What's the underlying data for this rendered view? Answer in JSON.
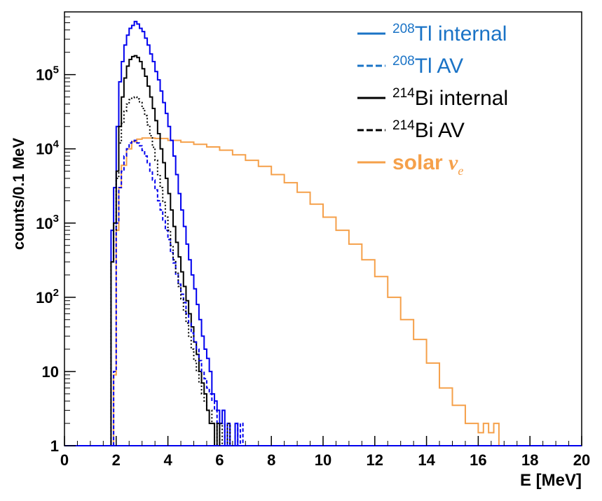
{
  "chart_data": {
    "type": "line",
    "xlabel": "E [MeV]",
    "ylabel": "counts/0.1 MeV",
    "xlim": [
      0,
      20
    ],
    "ylim": [
      1,
      700000
    ],
    "yscale": "log",
    "x_ticks": [
      "0",
      "2",
      "4",
      "6",
      "8",
      "10",
      "12",
      "14",
      "16",
      "18",
      "20"
    ],
    "y_ticks": [
      {
        "value": 1,
        "base": "1",
        "exp": ""
      },
      {
        "value": 10,
        "base": "10",
        "exp": ""
      },
      {
        "value": 100,
        "base": "10",
        "exp": "2"
      },
      {
        "value": 1000,
        "base": "10",
        "exp": "3"
      },
      {
        "value": 10000,
        "base": "10",
        "exp": "4"
      },
      {
        "value": 100000,
        "base": "10",
        "exp": "5"
      }
    ],
    "legend_position": "top-right",
    "series": [
      {
        "name": "208Tl internal",
        "legend": {
          "sup": "208",
          "text": "Tl internal",
          "italic": ""
        },
        "color": "#0000ee",
        "legend_color": "#1a73c6",
        "dash": "solid",
        "x": [
          1.8,
          1.9,
          2.0,
          2.1,
          2.2,
          2.3,
          2.4,
          2.5,
          2.6,
          2.7,
          2.8,
          2.9,
          3.0,
          3.1,
          3.2,
          3.3,
          3.4,
          3.5,
          3.6,
          3.7,
          3.8,
          3.9,
          4.0,
          4.1,
          4.2,
          4.3,
          4.4,
          4.5,
          4.6,
          4.7,
          4.8,
          4.9,
          5.0,
          5.1,
          5.2,
          5.3,
          5.4,
          5.5,
          5.6,
          5.7,
          5.8,
          5.9,
          6.0,
          6.1,
          6.2,
          6.3,
          6.4,
          6.5,
          6.6,
          6.7,
          6.8,
          6.9
        ],
        "values": [
          800,
          3000,
          20000,
          80000,
          150000,
          250000,
          340000,
          420000,
          460000,
          520000,
          480000,
          420000,
          380000,
          310000,
          250000,
          190000,
          150000,
          110000,
          85000,
          60000,
          42000,
          30000,
          20000,
          13000,
          8000,
          4500,
          2500,
          1500,
          900,
          520,
          320,
          200,
          130,
          80,
          50,
          30,
          20,
          15,
          10,
          5,
          4,
          3,
          2,
          3,
          1,
          2,
          1,
          1,
          2,
          1,
          1,
          1
        ]
      },
      {
        "name": "208Tl AV",
        "legend": {
          "sup": "208",
          "text": "Tl AV",
          "italic": ""
        },
        "color": "#0000ee",
        "legend_color": "#1a73c6",
        "dash": "dashed",
        "x": [
          1.9,
          2.0,
          2.1,
          2.2,
          2.3,
          2.4,
          2.5,
          2.6,
          2.7,
          2.8,
          2.9,
          3.0,
          3.1,
          3.2,
          3.3,
          3.4,
          3.5,
          3.6,
          3.7,
          3.8,
          3.9,
          4.0,
          4.1,
          4.2,
          4.3,
          4.4,
          4.5,
          4.6,
          4.7,
          4.8,
          4.9,
          5.0,
          5.1,
          5.2,
          5.3,
          5.4,
          5.5,
          5.6,
          5.7,
          5.8,
          5.9,
          6.0,
          6.1,
          6.2,
          6.3,
          6.4,
          6.5,
          6.6,
          6.7,
          6.8,
          6.9
        ],
        "values": [
          10,
          1000,
          3000,
          5000,
          8000,
          10000,
          12000,
          12500,
          13000,
          12000,
          11000,
          9500,
          8000,
          6500,
          5000,
          3800,
          2800,
          2000,
          1500,
          1100,
          800,
          600,
          400,
          290,
          200,
          150,
          110,
          85,
          60,
          45,
          33,
          25,
          20,
          14,
          10,
          8,
          6,
          5,
          4,
          3,
          2,
          2,
          2,
          1,
          2,
          1,
          1,
          2,
          1,
          2,
          1
        ]
      },
      {
        "name": "214Bi internal",
        "legend": {
          "sup": "214",
          "text": "Bi internal",
          "italic": ""
        },
        "color": "#000000",
        "legend_color": "#000000",
        "dash": "solid",
        "x": [
          1.8,
          1.9,
          2.0,
          2.1,
          2.2,
          2.3,
          2.4,
          2.5,
          2.6,
          2.7,
          2.8,
          2.9,
          3.0,
          3.1,
          3.2,
          3.3,
          3.4,
          3.5,
          3.6,
          3.7,
          3.8,
          3.9,
          4.0,
          4.1,
          4.2,
          4.3,
          4.4,
          4.5,
          4.6,
          4.7,
          4.8,
          4.9,
          5.0,
          5.1,
          5.2,
          5.3,
          5.4,
          5.5,
          5.6,
          5.7,
          5.8,
          5.9,
          6.0
        ],
        "values": [
          300,
          1000,
          5000,
          20000,
          50000,
          90000,
          130000,
          160000,
          175000,
          180000,
          170000,
          150000,
          120000,
          95000,
          70000,
          50000,
          35000,
          24000,
          16000,
          10000,
          6500,
          4000,
          2500,
          1500,
          900,
          550,
          350,
          220,
          140,
          90,
          60,
          40,
          25,
          17,
          10,
          7,
          5,
          3,
          2,
          2,
          1,
          2,
          1
        ]
      },
      {
        "name": "214Bi AV",
        "legend": {
          "sup": "214",
          "text": "Bi AV",
          "italic": ""
        },
        "color": "#000000",
        "legend_color": "#000000",
        "dash": "dotted",
        "x": [
          1.8,
          1.9,
          2.0,
          2.1,
          2.2,
          2.3,
          2.4,
          2.5,
          2.6,
          2.7,
          2.8,
          2.9,
          3.0,
          3.1,
          3.2,
          3.3,
          3.4,
          3.5,
          3.6,
          3.7,
          3.8,
          3.9,
          4.0,
          4.1,
          4.2,
          4.3,
          4.4,
          4.5,
          4.6,
          4.7,
          4.8,
          4.9,
          5.0,
          5.1,
          5.2,
          5.3,
          5.4,
          5.5,
          5.6,
          5.7,
          5.8,
          5.9,
          6.0,
          6.1,
          6.2,
          6.3,
          6.4
        ],
        "values": [
          300,
          800,
          4000,
          12000,
          22000,
          32000,
          40000,
          46000,
          49000,
          50000,
          47000,
          42000,
          35000,
          28000,
          21000,
          15000,
          10500,
          7000,
          4500,
          3000,
          1900,
          1200,
          800,
          500,
          320,
          210,
          140,
          95,
          65,
          45,
          30,
          20,
          14,
          10,
          7,
          5,
          4,
          3,
          3,
          2,
          2,
          1,
          2,
          1,
          1,
          2,
          1
        ]
      },
      {
        "name": "solar νe",
        "legend": {
          "sup": "",
          "text": "solar ",
          "italic": "νe"
        },
        "color": "#f5a04a",
        "legend_color": "#f5a04a",
        "dash": "solid",
        "x": [
          1.9,
          2.0,
          2.1,
          2.2,
          2.4,
          2.6,
          2.8,
          3.0,
          3.5,
          4.0,
          4.5,
          5.0,
          5.5,
          6.0,
          6.5,
          7.0,
          7.5,
          8.0,
          8.5,
          9.0,
          9.5,
          10.0,
          10.5,
          11.0,
          11.5,
          12.0,
          12.5,
          13.0,
          13.5,
          14.0,
          14.5,
          15.0,
          15.5,
          16.0,
          16.2,
          16.4,
          16.6,
          16.8
        ],
        "values": [
          9,
          800,
          3000,
          6000,
          10000,
          12500,
          13500,
          14000,
          13800,
          13000,
          12300,
          11500,
          10600,
          9600,
          8300,
          7000,
          5800,
          4500,
          3500,
          2600,
          1800,
          1200,
          800,
          520,
          320,
          190,
          100,
          50,
          27,
          13,
          6,
          3.5,
          2,
          1.5,
          2,
          1.5,
          2,
          1
        ]
      }
    ]
  }
}
